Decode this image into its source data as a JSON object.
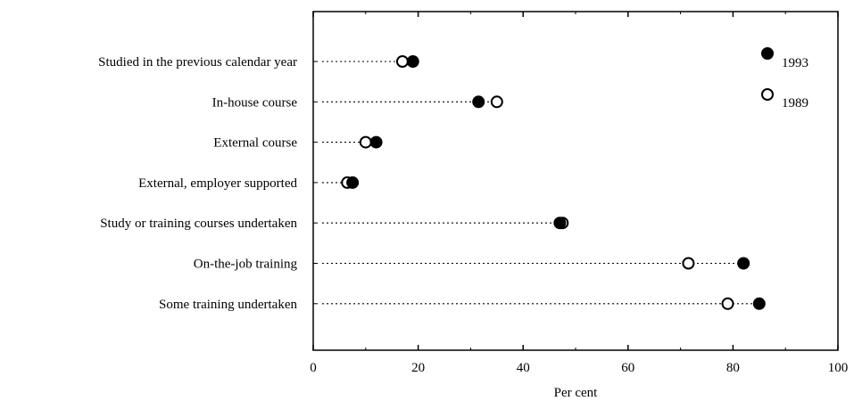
{
  "chart_data": {
    "type": "scatter",
    "subtype": "dot-plot",
    "title": "",
    "xlabel": "Per cent",
    "ylabel": "",
    "xlim": [
      0,
      100
    ],
    "xticks": [
      0,
      20,
      40,
      60,
      80,
      100
    ],
    "grid": false,
    "legend_position": "top-right",
    "categories": [
      "Studied in the previous calendar year",
      "In-house course",
      "External course",
      "External, employer supported",
      "Study or training courses undertaken",
      "On-the-job training",
      "Some training undertaken"
    ],
    "series": [
      {
        "name": "1993",
        "marker": "filled-circle",
        "values": [
          19,
          31.5,
          12,
          7.5,
          47,
          82,
          85
        ]
      },
      {
        "name": "1989",
        "marker": "open-circle",
        "values": [
          17,
          35,
          10,
          6.5,
          47.5,
          71.5,
          79
        ]
      }
    ]
  }
}
